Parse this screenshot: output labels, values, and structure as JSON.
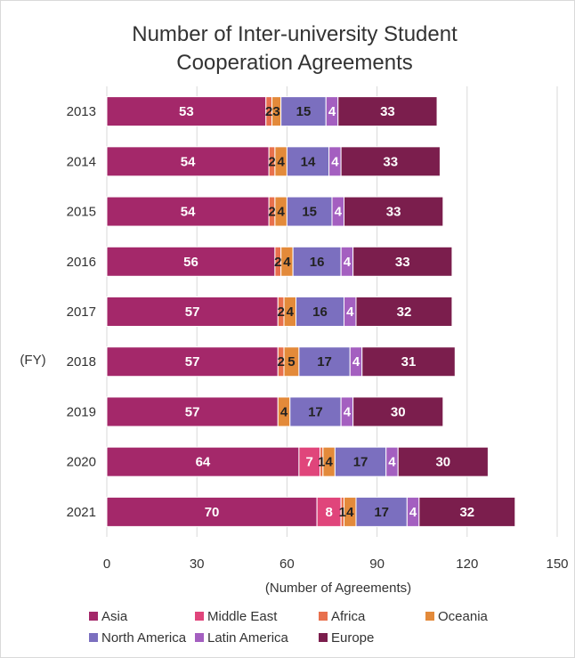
{
  "chart_data": {
    "type": "bar",
    "orientation": "horizontal",
    "stacked": true,
    "title": "Number of Inter-university Student Cooperation Agreements",
    "title_lines": [
      "Number of Inter-university Student",
      "Cooperation Agreements"
    ],
    "xlabel": "(Number of Agreements)",
    "ylabel": "(FY)",
    "xlim": [
      0,
      150
    ],
    "xticks": [
      "0",
      "30",
      "60",
      "90",
      "120",
      "150"
    ],
    "grid": "vertical",
    "legend_position": "bottom",
    "categories": [
      "2013",
      "2014",
      "2015",
      "2016",
      "2017",
      "2018",
      "2019",
      "2020",
      "2021"
    ],
    "series": [
      {
        "name": "Asia",
        "color": "#a4286a",
        "label_color": "#ffffff",
        "values": [
          53,
          54,
          54,
          56,
          57,
          57,
          57,
          64,
          70
        ]
      },
      {
        "name": "Middle East",
        "color": "#e0457b",
        "label_color": "#ffffff",
        "values": [
          0,
          0,
          0,
          0,
          0,
          0,
          0,
          7,
          8
        ]
      },
      {
        "name": "Africa",
        "color": "#e8704d",
        "label_color": "#222222",
        "values": [
          2,
          2,
          2,
          2,
          2,
          2,
          0,
          1,
          1
        ]
      },
      {
        "name": "Oceania",
        "color": "#e38a3a",
        "label_color": "#222222",
        "values": [
          3,
          4,
          4,
          4,
          4,
          5,
          4,
          4,
          4
        ]
      },
      {
        "name": "North America",
        "color": "#7b6fbf",
        "label_color": "#222222",
        "values": [
          15,
          14,
          15,
          16,
          16,
          17,
          17,
          17,
          17
        ]
      },
      {
        "name": "Latin America",
        "color": "#a45fc0",
        "label_color": "#ffffff",
        "values": [
          4,
          4,
          4,
          4,
          4,
          4,
          4,
          4,
          4
        ]
      },
      {
        "name": "Europe",
        "color": "#7b1e4d",
        "label_color": "#ffffff",
        "values": [
          33,
          33,
          33,
          33,
          32,
          31,
          30,
          30,
          32
        ]
      }
    ]
  }
}
